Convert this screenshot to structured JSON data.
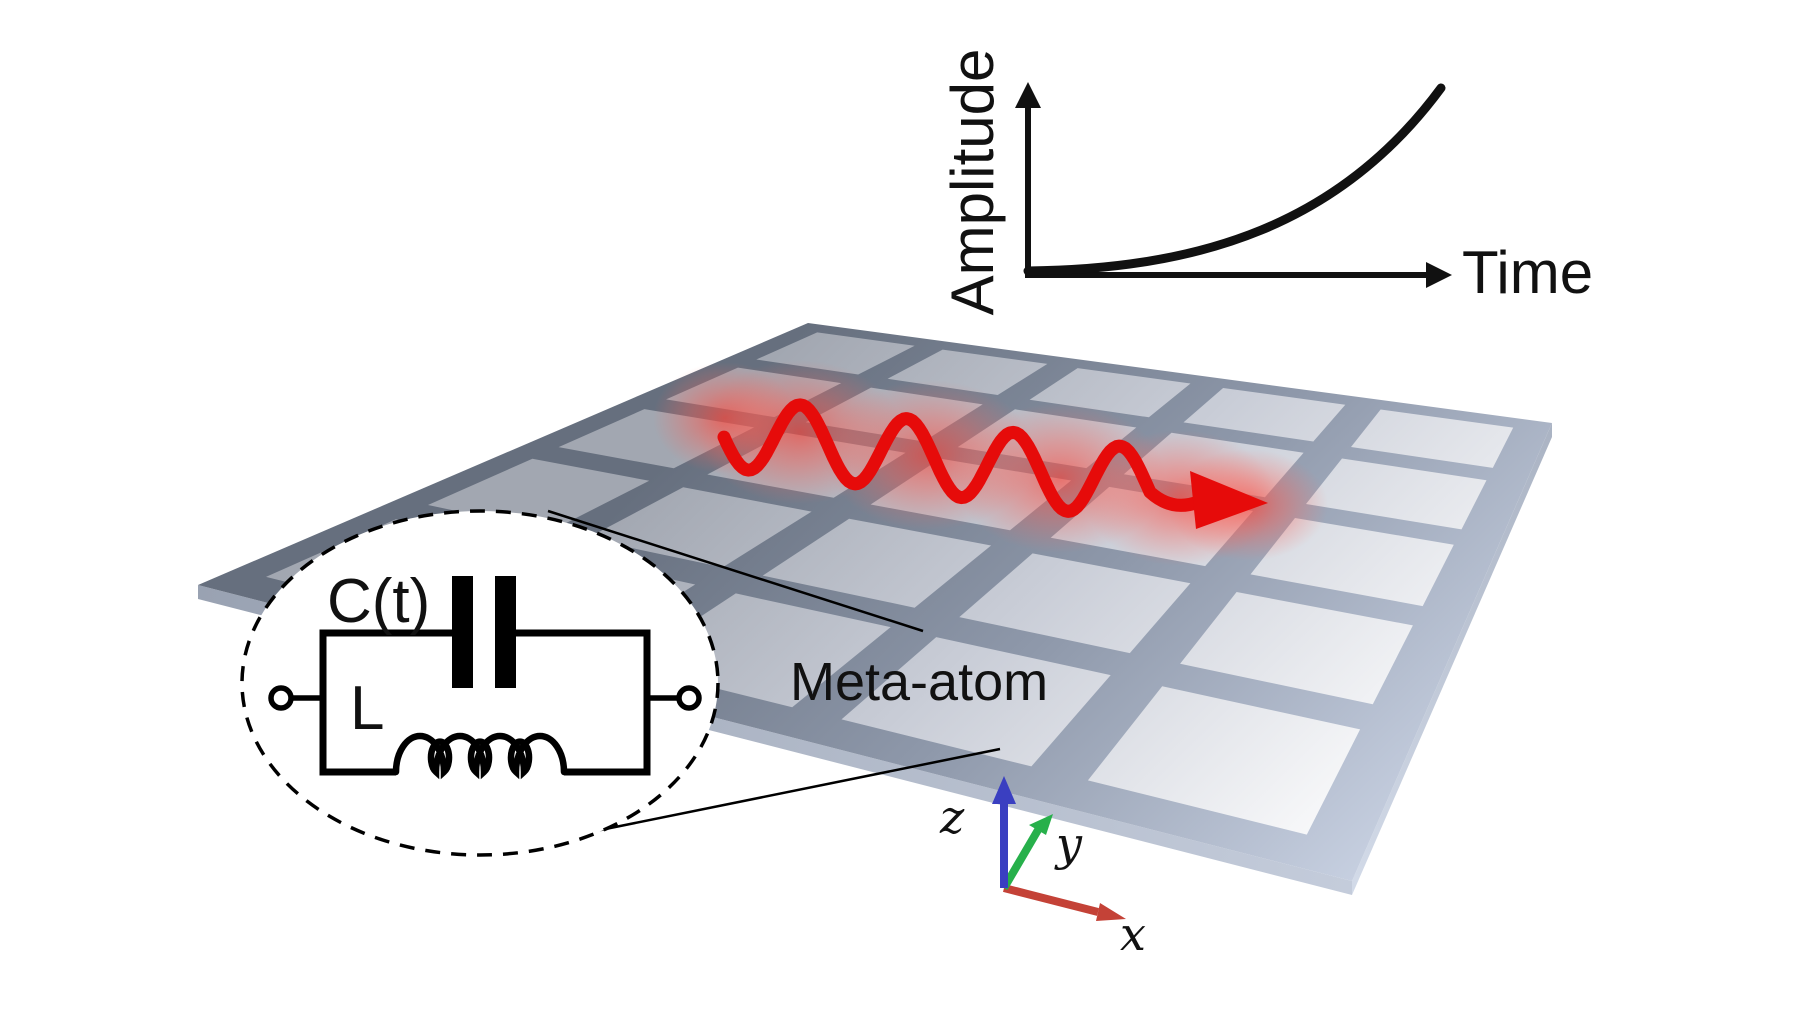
{
  "figure": {
    "surface": {
      "label": "Meta-atom",
      "grid_rows": 5,
      "grid_cols": 5,
      "plate_back_color": "#67707f",
      "plate_front_color": "#c9d2e2",
      "cell_back_color": "#a2a7b1",
      "cell_front_color": "#ffffff"
    },
    "graph": {
      "ylabel": "Amplitude",
      "xlabel": "Time",
      "curve_color": "#111111"
    },
    "circuit": {
      "capacitor_label": "C(t)",
      "inductor_label": "L"
    },
    "wave": {
      "color": "#e60b0a",
      "glow_color": "#ff4438"
    },
    "axes_triad": {
      "x": {
        "label": "x",
        "color": "#c44237",
        "label_color": "#a33128"
      },
      "y": {
        "label": "y",
        "color": "#27b04b",
        "label_color": "#27b04b"
      },
      "z": {
        "label": "z",
        "color": "#3a3fc1",
        "label_color": "#3a3fc1"
      }
    }
  },
  "chart_data": {
    "type": "line",
    "title": "",
    "xlabel": "Time",
    "ylabel": "Amplitude",
    "x_ticks": [],
    "y_ticks": [],
    "axis_arrows": true,
    "grid": false,
    "legend": false,
    "series": [
      {
        "name": "wave-amplitude-growth",
        "shape": "exponential",
        "x_norm": [
          0,
          0.2,
          0.4,
          0.6,
          0.8,
          0.9,
          1.0
        ],
        "y_norm": [
          0.02,
          0.03,
          0.07,
          0.16,
          0.42,
          0.65,
          1.0
        ]
      }
    ]
  }
}
